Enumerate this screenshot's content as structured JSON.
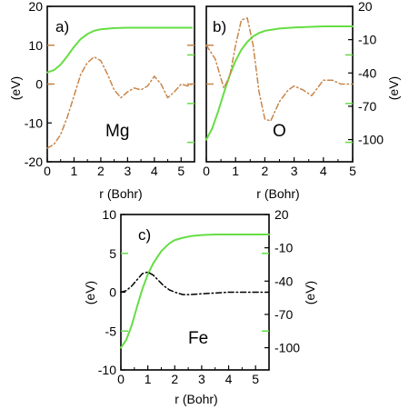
{
  "colors": {
    "green": "#66dd44",
    "orange": "#c8864a",
    "black": "#000000"
  },
  "chart_data": [
    {
      "type": "line",
      "panel_label": "a)",
      "element": "Mg",
      "xlabel": "r (Bohr)",
      "ylabel": "(eV)",
      "xlim": [
        0,
        5.5
      ],
      "xticks": [
        "0",
        "1",
        "2",
        "3",
        "4",
        "5"
      ],
      "ylim": [
        -20,
        20
      ],
      "yticks": [
        "-20",
        "-10",
        "0",
        "10",
        "20"
      ],
      "secondary_axis": false,
      "series": [
        {
          "style": "solid",
          "color": "#66dd44",
          "x": [
            0,
            0.25,
            0.5,
            0.75,
            1.0,
            1.25,
            1.5,
            1.75,
            2.0,
            2.5,
            3.0,
            3.5,
            4.0,
            4.5,
            5.0,
            5.4
          ],
          "y": [
            3.0,
            3.6,
            5.0,
            7.2,
            9.6,
            11.6,
            12.9,
            13.7,
            14.1,
            14.4,
            14.5,
            14.5,
            14.5,
            14.5,
            14.5,
            14.5
          ]
        },
        {
          "style": "dashdot",
          "color": "#c8864a",
          "x": [
            0,
            0.25,
            0.5,
            0.75,
            1.0,
            1.25,
            1.5,
            1.75,
            2.0,
            2.25,
            2.5,
            2.75,
            3.0,
            3.25,
            3.5,
            3.75,
            4.0,
            4.25,
            4.5,
            4.75,
            5.0,
            5.25,
            5.4
          ],
          "y": [
            -16.5,
            -15.5,
            -13.0,
            -8.5,
            -3.0,
            2.5,
            5.5,
            7.0,
            6.0,
            2.5,
            -1.5,
            -3.5,
            -2.0,
            -1.0,
            -1.5,
            -0.5,
            2.0,
            0.0,
            -3.5,
            -2.0,
            0.0,
            -0.5,
            0.0
          ]
        }
      ],
      "side_ticks": {
        "left_orange": [
          0,
          10
        ],
        "right_orange": [
          10,
          0
        ],
        "right_green": [
          7.5,
          -5,
          -15
        ]
      }
    },
    {
      "type": "line",
      "panel_label": "b)",
      "element": "O",
      "xlabel": "r (Bohr)",
      "ylabel": "(eV)",
      "xlim": [
        0,
        5.0
      ],
      "xticks": [
        "0",
        "1",
        "2",
        "3",
        "4",
        "5"
      ],
      "ylim": [
        -20,
        20
      ],
      "right_ylim": [
        -120,
        20
      ],
      "right_yticks": [
        "-100",
        "-70",
        "-40",
        "-10",
        "20"
      ],
      "secondary_axis": true,
      "series": [
        {
          "style": "solid",
          "color": "#66dd44",
          "axis": "right",
          "x": [
            0,
            0.2,
            0.4,
            0.6,
            0.8,
            1.0,
            1.2,
            1.4,
            1.6,
            1.8,
            2.0,
            2.5,
            3.0,
            3.5,
            4.0,
            4.5,
            5.0
          ],
          "y": [
            -100,
            -90,
            -75,
            -58,
            -42,
            -29,
            -19,
            -12,
            -7,
            -4,
            -2,
            0,
            1,
            1.5,
            2,
            2,
            2
          ]
        },
        {
          "style": "dashdot",
          "color": "#c8864a",
          "axis": "left",
          "x": [
            0.0,
            0.3,
            0.6,
            0.8,
            1.0,
            1.2,
            1.4,
            1.6,
            1.8,
            2.0,
            2.2,
            2.5,
            2.8,
            3.0,
            3.3,
            3.6,
            4.0,
            4.3,
            4.6,
            5.0
          ],
          "y": [
            10.0,
            6.5,
            -1.0,
            2.0,
            10.0,
            16.5,
            17.0,
            10.0,
            -2.0,
            -9.0,
            -9.5,
            -4.5,
            -1.5,
            -0.5,
            -1.5,
            -3.0,
            1.0,
            1.0,
            0.0,
            0.0
          ]
        }
      ],
      "side_ticks": {
        "left_orange": [
          0,
          10
        ],
        "right_green": [
          7.5,
          -5,
          -15
        ]
      }
    },
    {
      "type": "line",
      "panel_label": "c)",
      "element": "Fe",
      "xlabel": "r (Bohr)",
      "ylabel": "(eV)",
      "xlim": [
        0,
        5.5
      ],
      "xticks": [
        "0",
        "1",
        "2",
        "3",
        "4",
        "5"
      ],
      "ylim": [
        -10,
        10
      ],
      "yticks": [
        "-10",
        "-5",
        "0",
        "5",
        "10"
      ],
      "right_ylim": [
        -120,
        20
      ],
      "right_yticks": [
        "-100",
        "-70",
        "-40",
        "-10",
        "20"
      ],
      "secondary_axis": true,
      "series": [
        {
          "style": "solid",
          "color": "#66dd44",
          "axis": "right",
          "x": [
            0,
            0.2,
            0.4,
            0.6,
            0.8,
            1.0,
            1.2,
            1.5,
            1.8,
            2.0,
            2.3,
            2.6,
            3.0,
            3.5,
            4.0,
            4.5,
            5.0,
            5.5
          ],
          "y": [
            -100,
            -93,
            -80,
            -63,
            -47,
            -34,
            -24,
            -13,
            -6,
            -3,
            -1,
            0.5,
            1.5,
            2,
            2,
            2,
            2,
            2
          ]
        },
        {
          "style": "dashdot",
          "color": "#000000",
          "axis": "left",
          "x": [
            0,
            0.2,
            0.4,
            0.6,
            0.8,
            1.0,
            1.2,
            1.4,
            1.6,
            1.8,
            2.0,
            2.3,
            2.6,
            3.0,
            3.5,
            4.0,
            4.5,
            5.0,
            5.5
          ],
          "y": [
            0.0,
            0.2,
            0.8,
            1.6,
            2.4,
            2.6,
            2.2,
            1.5,
            0.8,
            0.3,
            0.0,
            -0.3,
            -0.3,
            -0.2,
            -0.1,
            0.0,
            0.0,
            0.0,
            0.0
          ]
        }
      ],
      "side_ticks": {
        "left_green": [
          -5,
          5
        ],
        "right_green": [
          5,
          -5
        ]
      }
    }
  ]
}
